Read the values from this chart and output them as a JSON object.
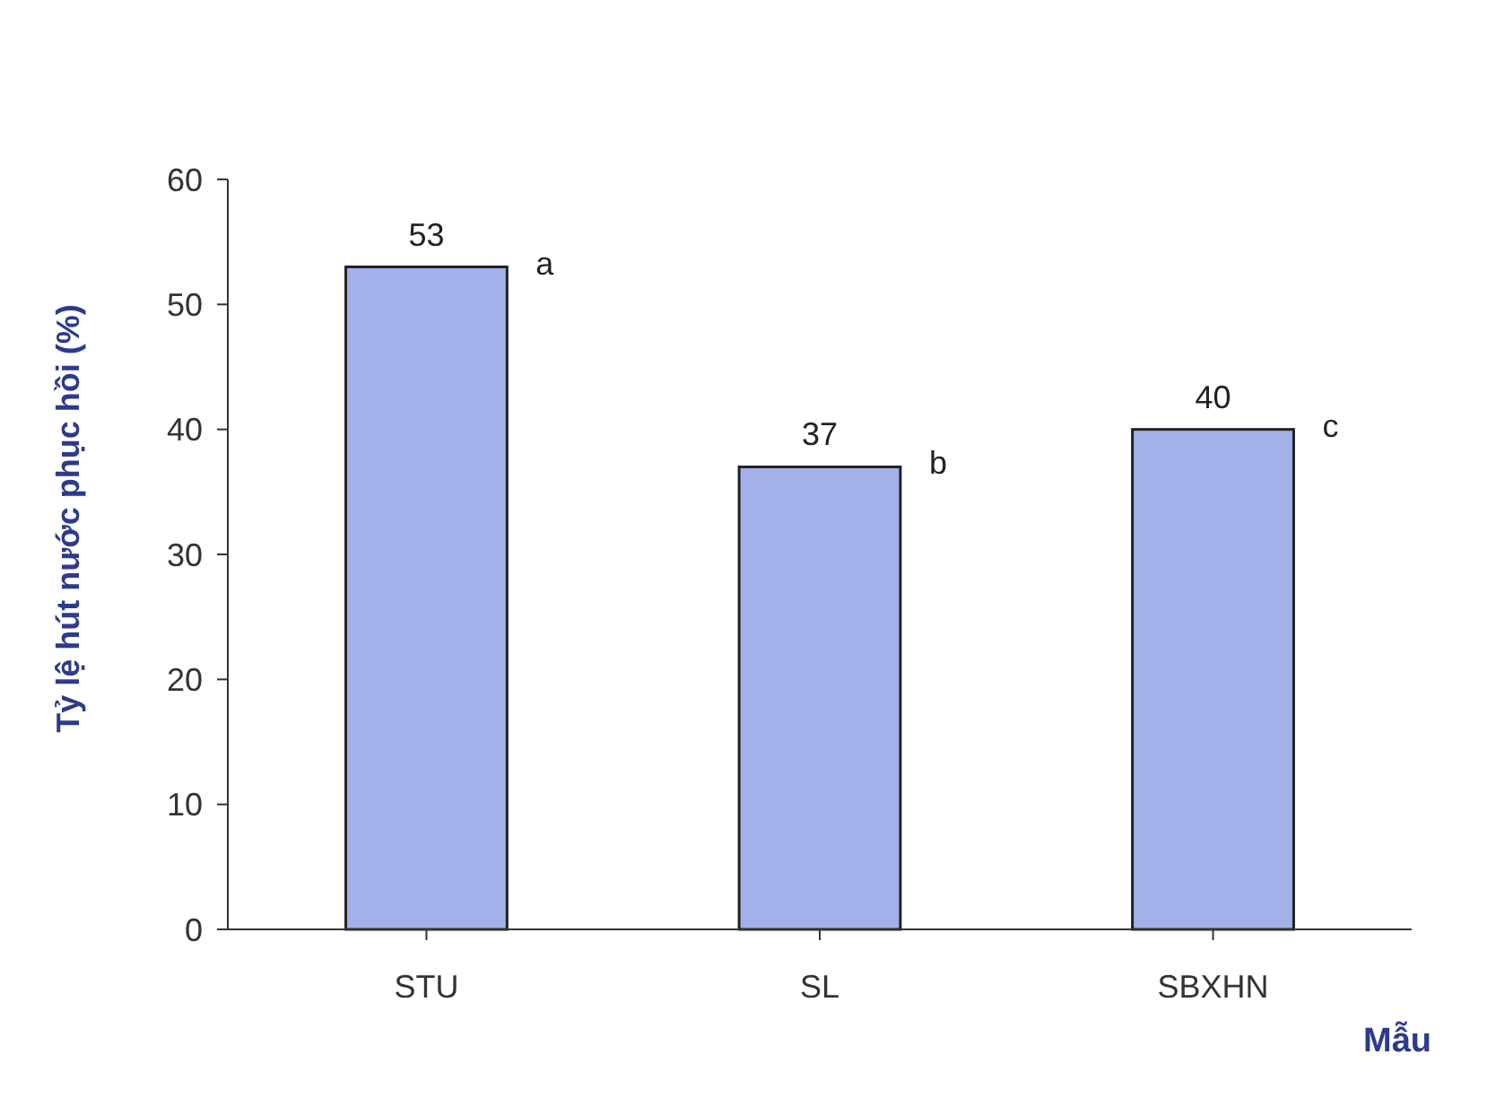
{
  "chart_data": {
    "type": "bar",
    "ylabel": "Tỷ lệ hút nước phục hồi (%)",
    "xlabel": "Mẫu",
    "categories": [
      "STU",
      "SL",
      "SBXHN"
    ],
    "values": [
      53,
      37,
      40
    ],
    "color": "#a4b0ea",
    "data_labels": true,
    "ylim": [
      0,
      60
    ],
    "yticks": [
      0,
      10,
      20,
      30,
      40,
      50,
      60
    ],
    "grid": false,
    "annotations": [
      "a",
      "b",
      "c"
    ]
  }
}
